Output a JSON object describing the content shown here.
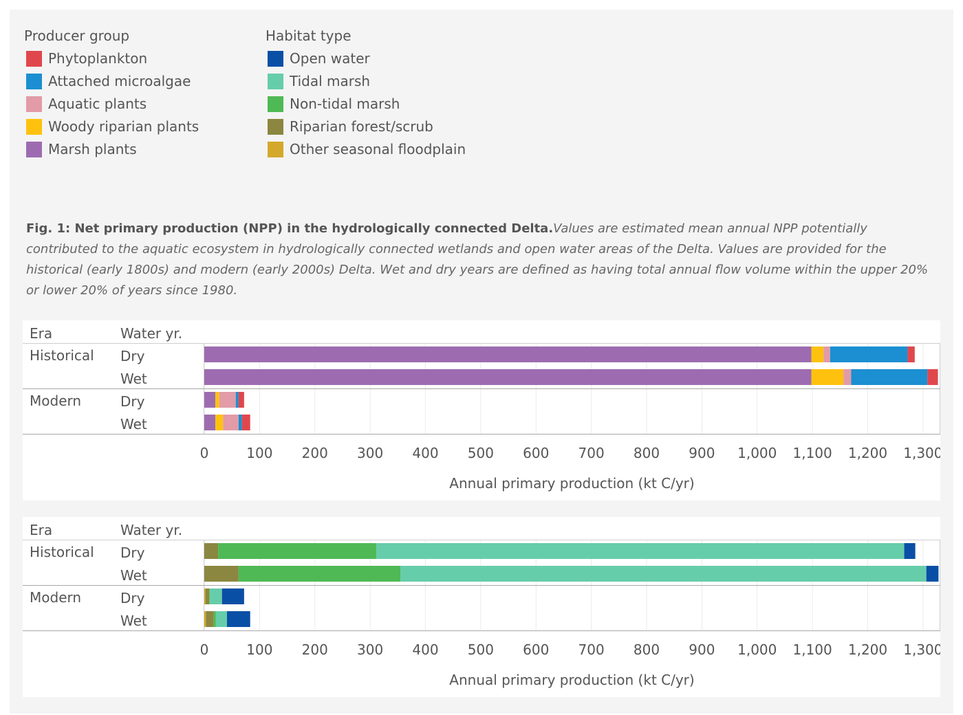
{
  "legend": {
    "producer": {
      "title": "Producer group",
      "items": [
        {
          "label": "Phytoplankton",
          "color": "#e0474c"
        },
        {
          "label": "Attached microalgae",
          "color": "#1b8fd1"
        },
        {
          "label": "Aquatic plants",
          "color": "#e29ba7"
        },
        {
          "label": "Woody riparian plants",
          "color": "#fec20e"
        },
        {
          "label": "Marsh plants",
          "color": "#9d6cb0"
        }
      ]
    },
    "habitat": {
      "title": "Habitat type",
      "items": [
        {
          "label": "Open water",
          "color": "#0a4fa6"
        },
        {
          "label": "Tidal marsh",
          "color": "#66cdaa"
        },
        {
          "label": "Non-tidal marsh",
          "color": "#4fb955"
        },
        {
          "label": "Riparian forest/scrub",
          "color": "#8b8740"
        },
        {
          "label": "Other seasonal floodplain",
          "color": "#d4a82a"
        }
      ]
    }
  },
  "caption": {
    "bold": "Fig. 1: Net primary production (NPP) in the hydrologically connected Delta.",
    "italic": "Values are estimated mean annual NPP potentially contributed to the aquatic ecosystem in hydrologically connected wetlands and open water areas of the Delta. Values are provided for the historical (early 1800s) and modern (early 2000s) Delta. Wet and dry years are defined as having total annual flow volume within the upper 20% or lower 20% of years since 1980."
  },
  "chart_data": [
    {
      "type": "bar",
      "orientation": "horizontal",
      "stacked": true,
      "row_headers": [
        "Era",
        "Water yr."
      ],
      "eras": [
        "Historical",
        "Modern"
      ],
      "water_years": [
        "Dry",
        "Wet"
      ],
      "xlabel": "Annual primary production (kt C/yr)",
      "xlim": [
        0,
        1330
      ],
      "xticks": [
        0,
        100,
        200,
        300,
        400,
        500,
        600,
        700,
        800,
        900,
        1000,
        1100,
        1200,
        1300
      ],
      "xtick_labels": [
        "0",
        "100",
        "200",
        "300",
        "400",
        "500",
        "600",
        "700",
        "800",
        "900",
        "1,000",
        "1,100",
        "1,200",
        "1,300"
      ],
      "grid": true,
      "series_order": [
        "Marsh plants",
        "Woody riparian plants",
        "Aquatic plants",
        "Attached microalgae",
        "Phytoplankton"
      ],
      "rows": [
        {
          "era": "Historical",
          "water_year": "Dry",
          "values": {
            "Marsh plants": 1098,
            "Woody riparian plants": 22,
            "Aquatic plants": 12,
            "Attached microalgae": 140,
            "Phytoplankton": 13
          }
        },
        {
          "era": "Historical",
          "water_year": "Wet",
          "values": {
            "Marsh plants": 1098,
            "Woody riparian plants": 58,
            "Aquatic plants": 14,
            "Attached microalgae": 138,
            "Phytoplankton": 19
          }
        },
        {
          "era": "Modern",
          "water_year": "Dry",
          "values": {
            "Marsh plants": 20,
            "Woody riparian plants": 7,
            "Aquatic plants": 30,
            "Attached microalgae": 5,
            "Phytoplankton": 10
          }
        },
        {
          "era": "Modern",
          "water_year": "Wet",
          "values": {
            "Marsh plants": 20,
            "Woody riparian plants": 14,
            "Aquatic plants": 28,
            "Attached microalgae": 6,
            "Phytoplankton": 15
          }
        }
      ]
    },
    {
      "type": "bar",
      "orientation": "horizontal",
      "stacked": true,
      "row_headers": [
        "Era",
        "Water yr."
      ],
      "eras": [
        "Historical",
        "Modern"
      ],
      "water_years": [
        "Dry",
        "Wet"
      ],
      "xlabel": "Annual primary production (kt C/yr)",
      "xlim": [
        0,
        1330
      ],
      "xticks": [
        0,
        100,
        200,
        300,
        400,
        500,
        600,
        700,
        800,
        900,
        1000,
        1100,
        1200,
        1300
      ],
      "xtick_labels": [
        "0",
        "100",
        "200",
        "300",
        "400",
        "500",
        "600",
        "700",
        "800",
        "900",
        "1,000",
        "1,100",
        "1,200",
        "1,300"
      ],
      "grid": true,
      "series_order": [
        "Other seasonal floodplain",
        "Riparian forest/scrub",
        "Non-tidal marsh",
        "Tidal marsh",
        "Open water"
      ],
      "rows": [
        {
          "era": "Historical",
          "water_year": "Dry",
          "values": {
            "Other seasonal floodplain": 0,
            "Riparian forest/scrub": 25,
            "Non-tidal marsh": 286,
            "Tidal marsh": 955,
            "Open water": 20
          }
        },
        {
          "era": "Historical",
          "water_year": "Wet",
          "values": {
            "Other seasonal floodplain": 0,
            "Riparian forest/scrub": 62,
            "Non-tidal marsh": 293,
            "Tidal marsh": 951,
            "Open water": 22
          }
        },
        {
          "era": "Modern",
          "water_year": "Dry",
          "values": {
            "Other seasonal floodplain": 2,
            "Riparian forest/scrub": 7,
            "Non-tidal marsh": 1,
            "Tidal marsh": 22,
            "Open water": 40
          }
        },
        {
          "era": "Modern",
          "water_year": "Wet",
          "values": {
            "Other seasonal floodplain": 3,
            "Riparian forest/scrub": 14,
            "Non-tidal marsh": 4,
            "Tidal marsh": 20,
            "Open water": 42
          }
        }
      ]
    }
  ]
}
